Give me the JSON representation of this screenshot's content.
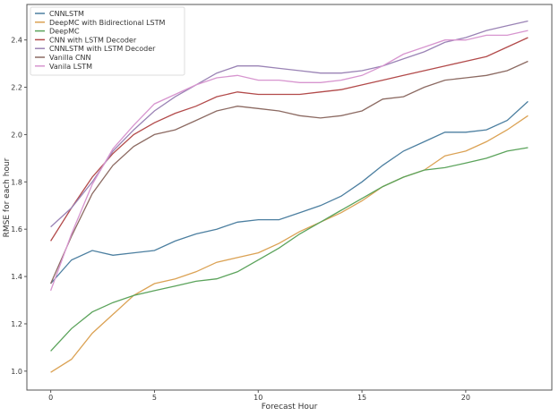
{
  "chart_data": {
    "type": "line",
    "title": "",
    "xlabel": "Forecast Hour",
    "ylabel": "RMSE for each hour",
    "xlim": [
      -1.15,
      24.15
    ],
    "ylim": [
      0.92,
      2.55
    ],
    "xticks": [
      0,
      5,
      10,
      15,
      20
    ],
    "yticks": [
      1.0,
      1.2,
      1.4,
      1.6,
      1.8,
      2.0,
      2.2,
      2.4
    ],
    "ytick_labels": [
      "1.0",
      "1.2",
      "1.4",
      "1.6",
      "1.8",
      "2.0",
      "2.2",
      "2.4"
    ],
    "xtick_labels": [
      "0",
      "5",
      "10",
      "15",
      "20"
    ],
    "grid": false,
    "legend_position": "top-left",
    "x": [
      0,
      1,
      2,
      3,
      4,
      5,
      6,
      7,
      8,
      9,
      10,
      11,
      12,
      13,
      14,
      15,
      16,
      17,
      18,
      19,
      20,
      21,
      22,
      23
    ],
    "series": [
      {
        "name": "CNNLSTM",
        "color": "#4c7fa0",
        "values": [
          1.37,
          1.47,
          1.51,
          1.49,
          1.5,
          1.51,
          1.55,
          1.58,
          1.6,
          1.63,
          1.64,
          1.64,
          1.67,
          1.7,
          1.74,
          1.8,
          1.87,
          1.93,
          1.97,
          2.01,
          2.01,
          2.02,
          2.06,
          2.14
        ]
      },
      {
        "name": "DeepMC with Bidirectional LSTM",
        "color": "#dba254",
        "values": [
          0.995,
          1.05,
          1.16,
          1.24,
          1.32,
          1.37,
          1.39,
          1.42,
          1.46,
          1.48,
          1.5,
          1.54,
          1.59,
          1.63,
          1.67,
          1.72,
          1.78,
          1.82,
          1.85,
          1.91,
          1.93,
          1.97,
          2.02,
          2.08
        ]
      },
      {
        "name": "DeepMC",
        "color": "#5ba35b",
        "values": [
          1.085,
          1.18,
          1.25,
          1.29,
          1.32,
          1.34,
          1.36,
          1.38,
          1.39,
          1.42,
          1.47,
          1.52,
          1.58,
          1.63,
          1.68,
          1.73,
          1.78,
          1.82,
          1.85,
          1.86,
          1.88,
          1.9,
          1.93,
          1.945
        ]
      },
      {
        "name": "CNN with LSTM Decoder",
        "color": "#b24a4a",
        "values": [
          1.55,
          1.69,
          1.82,
          1.92,
          2.0,
          2.05,
          2.09,
          2.12,
          2.16,
          2.18,
          2.17,
          2.17,
          2.17,
          2.18,
          2.19,
          2.21,
          2.23,
          2.25,
          2.27,
          2.29,
          2.31,
          2.33,
          2.37,
          2.41
        ]
      },
      {
        "name": "CNNLSTM with LSTM Decoder",
        "color": "#9a83b5",
        "values": [
          1.61,
          1.69,
          1.8,
          1.93,
          2.02,
          2.1,
          2.16,
          2.21,
          2.26,
          2.29,
          2.29,
          2.28,
          2.27,
          2.26,
          2.26,
          2.27,
          2.29,
          2.32,
          2.35,
          2.39,
          2.41,
          2.44,
          2.46,
          2.48
        ]
      },
      {
        "name": "Vanilla CNN",
        "color": "#8c6a62",
        "values": [
          1.37,
          1.57,
          1.75,
          1.87,
          1.95,
          2.0,
          2.02,
          2.06,
          2.1,
          2.12,
          2.11,
          2.1,
          2.08,
          2.07,
          2.08,
          2.1,
          2.15,
          2.16,
          2.2,
          2.23,
          2.24,
          2.25,
          2.27,
          2.31
        ]
      },
      {
        "name": "Vanila LSTM",
        "color": "#d795cf",
        "values": [
          1.34,
          1.58,
          1.79,
          1.94,
          2.04,
          2.13,
          2.17,
          2.21,
          2.24,
          2.25,
          2.23,
          2.23,
          2.22,
          2.22,
          2.23,
          2.25,
          2.29,
          2.34,
          2.37,
          2.4,
          2.4,
          2.42,
          2.42,
          2.44
        ]
      }
    ]
  }
}
